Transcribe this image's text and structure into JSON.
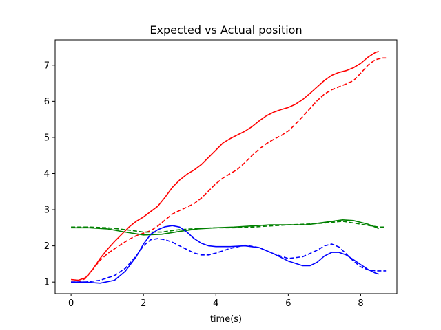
{
  "chart_data": {
    "type": "line",
    "title": "Expected vs Actual position",
    "xlabel": "time(s)",
    "ylabel": "",
    "xlim": [
      -0.44,
      9.0
    ],
    "ylim": [
      0.68,
      7.7
    ],
    "xticks": [
      0,
      2,
      4,
      6,
      8
    ],
    "yticks": [
      1,
      2,
      3,
      4,
      5,
      6,
      7
    ],
    "grid": false,
    "legend": "none",
    "series": [
      {
        "color": "#ff0000",
        "style": "solid",
        "points": [
          [
            0,
            1.07
          ],
          [
            0.2,
            1.05
          ],
          [
            0.4,
            1.12
          ],
          [
            0.6,
            1.35
          ],
          [
            0.8,
            1.65
          ],
          [
            1.0,
            1.9
          ],
          [
            1.2,
            2.12
          ],
          [
            1.4,
            2.32
          ],
          [
            1.6,
            2.52
          ],
          [
            1.8,
            2.68
          ],
          [
            2.0,
            2.8
          ],
          [
            2.2,
            2.95
          ],
          [
            2.4,
            3.1
          ],
          [
            2.6,
            3.35
          ],
          [
            2.8,
            3.62
          ],
          [
            3.0,
            3.82
          ],
          [
            3.2,
            3.98
          ],
          [
            3.4,
            4.1
          ],
          [
            3.6,
            4.25
          ],
          [
            3.8,
            4.45
          ],
          [
            4.0,
            4.65
          ],
          [
            4.2,
            4.85
          ],
          [
            4.4,
            4.97
          ],
          [
            4.6,
            5.07
          ],
          [
            4.8,
            5.17
          ],
          [
            5.0,
            5.3
          ],
          [
            5.2,
            5.46
          ],
          [
            5.4,
            5.6
          ],
          [
            5.6,
            5.7
          ],
          [
            5.8,
            5.77
          ],
          [
            6.0,
            5.83
          ],
          [
            6.2,
            5.92
          ],
          [
            6.4,
            6.05
          ],
          [
            6.6,
            6.22
          ],
          [
            6.8,
            6.4
          ],
          [
            7.0,
            6.58
          ],
          [
            7.2,
            6.72
          ],
          [
            7.4,
            6.8
          ],
          [
            7.6,
            6.85
          ],
          [
            7.8,
            6.93
          ],
          [
            8.0,
            7.05
          ],
          [
            8.2,
            7.22
          ],
          [
            8.4,
            7.35
          ],
          [
            8.5,
            7.38
          ]
        ]
      },
      {
        "color": "#ff0000",
        "style": "dashed",
        "points": [
          [
            0,
            1.0
          ],
          [
            0.2,
            1.0
          ],
          [
            0.4,
            1.1
          ],
          [
            0.6,
            1.35
          ],
          [
            0.8,
            1.6
          ],
          [
            1.0,
            1.78
          ],
          [
            1.2,
            1.92
          ],
          [
            1.4,
            2.05
          ],
          [
            1.6,
            2.18
          ],
          [
            1.8,
            2.28
          ],
          [
            2.0,
            2.35
          ],
          [
            2.2,
            2.42
          ],
          [
            2.4,
            2.55
          ],
          [
            2.6,
            2.72
          ],
          [
            2.8,
            2.88
          ],
          [
            3.0,
            2.98
          ],
          [
            3.2,
            3.07
          ],
          [
            3.4,
            3.17
          ],
          [
            3.6,
            3.32
          ],
          [
            3.8,
            3.52
          ],
          [
            4.0,
            3.72
          ],
          [
            4.2,
            3.88
          ],
          [
            4.4,
            4.0
          ],
          [
            4.6,
            4.12
          ],
          [
            4.8,
            4.3
          ],
          [
            5.0,
            4.5
          ],
          [
            5.2,
            4.68
          ],
          [
            5.4,
            4.83
          ],
          [
            5.6,
            4.95
          ],
          [
            5.8,
            5.05
          ],
          [
            6.0,
            5.18
          ],
          [
            6.2,
            5.37
          ],
          [
            6.4,
            5.58
          ],
          [
            6.6,
            5.8
          ],
          [
            6.8,
            6.02
          ],
          [
            7.0,
            6.2
          ],
          [
            7.2,
            6.32
          ],
          [
            7.4,
            6.4
          ],
          [
            7.6,
            6.48
          ],
          [
            7.8,
            6.57
          ],
          [
            8.0,
            6.78
          ],
          [
            8.2,
            7.0
          ],
          [
            8.4,
            7.15
          ],
          [
            8.6,
            7.2
          ],
          [
            8.7,
            7.2
          ]
        ]
      },
      {
        "color": "#008000",
        "style": "solid",
        "points": [
          [
            0,
            2.5
          ],
          [
            0.5,
            2.5
          ],
          [
            1.0,
            2.47
          ],
          [
            1.5,
            2.38
          ],
          [
            2.0,
            2.3
          ],
          [
            2.5,
            2.32
          ],
          [
            3.0,
            2.4
          ],
          [
            3.5,
            2.47
          ],
          [
            4.0,
            2.5
          ],
          [
            4.5,
            2.52
          ],
          [
            5.0,
            2.55
          ],
          [
            5.5,
            2.58
          ],
          [
            6.0,
            2.58
          ],
          [
            6.5,
            2.58
          ],
          [
            7.0,
            2.65
          ],
          [
            7.5,
            2.72
          ],
          [
            7.8,
            2.7
          ],
          [
            8.2,
            2.6
          ],
          [
            8.5,
            2.48
          ]
        ]
      },
      {
        "color": "#008000",
        "style": "dashed",
        "points": [
          [
            0,
            2.52
          ],
          [
            0.5,
            2.52
          ],
          [
            1.0,
            2.5
          ],
          [
            1.5,
            2.45
          ],
          [
            2.0,
            2.38
          ],
          [
            2.5,
            2.38
          ],
          [
            3.0,
            2.45
          ],
          [
            3.5,
            2.48
          ],
          [
            4.0,
            2.5
          ],
          [
            4.5,
            2.5
          ],
          [
            5.0,
            2.52
          ],
          [
            5.5,
            2.55
          ],
          [
            6.0,
            2.58
          ],
          [
            6.5,
            2.6
          ],
          [
            7.0,
            2.63
          ],
          [
            7.5,
            2.68
          ],
          [
            8.0,
            2.6
          ],
          [
            8.5,
            2.52
          ],
          [
            8.7,
            2.52
          ]
        ]
      },
      {
        "color": "#0000ff",
        "style": "solid",
        "points": [
          [
            0,
            1.0
          ],
          [
            0.4,
            1.0
          ],
          [
            0.8,
            0.97
          ],
          [
            1.2,
            1.05
          ],
          [
            1.5,
            1.3
          ],
          [
            1.8,
            1.7
          ],
          [
            2.0,
            2.05
          ],
          [
            2.2,
            2.32
          ],
          [
            2.4,
            2.45
          ],
          [
            2.6,
            2.53
          ],
          [
            2.8,
            2.56
          ],
          [
            3.0,
            2.52
          ],
          [
            3.2,
            2.38
          ],
          [
            3.4,
            2.2
          ],
          [
            3.6,
            2.07
          ],
          [
            3.8,
            2.0
          ],
          [
            4.0,
            1.98
          ],
          [
            4.4,
            1.98
          ],
          [
            4.8,
            2.0
          ],
          [
            5.2,
            1.95
          ],
          [
            5.6,
            1.78
          ],
          [
            6.0,
            1.58
          ],
          [
            6.4,
            1.45
          ],
          [
            6.6,
            1.45
          ],
          [
            6.8,
            1.55
          ],
          [
            7.0,
            1.72
          ],
          [
            7.2,
            1.82
          ],
          [
            7.4,
            1.82
          ],
          [
            7.6,
            1.75
          ],
          [
            7.8,
            1.62
          ],
          [
            8.0,
            1.48
          ],
          [
            8.2,
            1.35
          ],
          [
            8.4,
            1.25
          ],
          [
            8.5,
            1.22
          ]
        ]
      },
      {
        "color": "#0000ff",
        "style": "dashed",
        "points": [
          [
            0,
            1.0
          ],
          [
            0.4,
            1.0
          ],
          [
            0.8,
            1.05
          ],
          [
            1.2,
            1.18
          ],
          [
            1.5,
            1.38
          ],
          [
            1.8,
            1.72
          ],
          [
            2.0,
            2.0
          ],
          [
            2.2,
            2.17
          ],
          [
            2.4,
            2.2
          ],
          [
            2.6,
            2.17
          ],
          [
            2.8,
            2.1
          ],
          [
            3.0,
            2.0
          ],
          [
            3.2,
            1.9
          ],
          [
            3.4,
            1.8
          ],
          [
            3.6,
            1.75
          ],
          [
            3.8,
            1.75
          ],
          [
            4.0,
            1.8
          ],
          [
            4.4,
            1.93
          ],
          [
            4.8,
            2.02
          ],
          [
            5.2,
            1.95
          ],
          [
            5.6,
            1.78
          ],
          [
            6.0,
            1.65
          ],
          [
            6.4,
            1.7
          ],
          [
            6.8,
            1.88
          ],
          [
            7.0,
            2.0
          ],
          [
            7.2,
            2.05
          ],
          [
            7.4,
            1.97
          ],
          [
            7.6,
            1.78
          ],
          [
            7.8,
            1.58
          ],
          [
            8.0,
            1.42
          ],
          [
            8.2,
            1.34
          ],
          [
            8.4,
            1.31
          ],
          [
            8.7,
            1.31
          ]
        ]
      }
    ]
  }
}
